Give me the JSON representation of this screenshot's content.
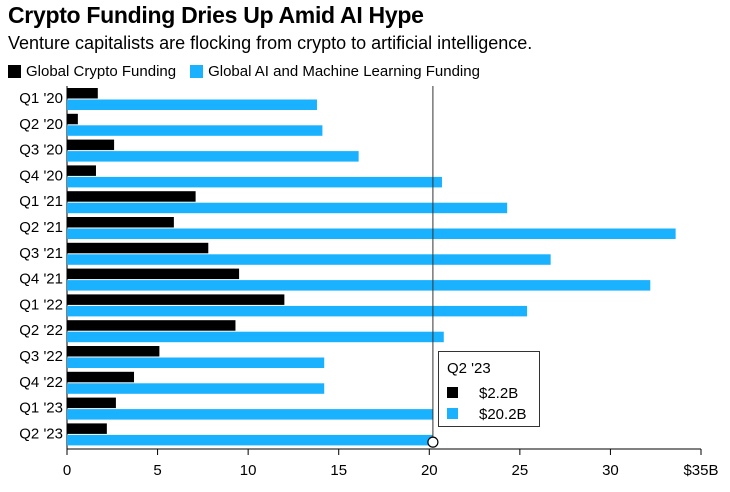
{
  "title": "Crypto Funding Dries Up Amid AI Hype",
  "subtitle": "Venture capitalists are flocking from crypto to artificial intelligence.",
  "colors": {
    "crypto": "#000000",
    "ai": "#1ab2ff",
    "marker_line": "#333333"
  },
  "legend": [
    {
      "label": "Global Crypto Funding"
    },
    {
      "label": "Global AI and Machine Learning Funding"
    }
  ],
  "tooltip": {
    "header": "Q2 '23",
    "crypto_value": "$2.2B",
    "ai_value": "$20.2B"
  },
  "chart_data": {
    "type": "bar",
    "orientation": "horizontal",
    "categories": [
      "Q1 '20",
      "Q2 '20",
      "Q3 '20",
      "Q4 '20",
      "Q1 '21",
      "Q2 '21",
      "Q3 '21",
      "Q4 '21",
      "Q1 '22",
      "Q2 '22",
      "Q3 '22",
      "Q4 '22",
      "Q1 '23",
      "Q2 '23"
    ],
    "series": [
      {
        "name": "Global Crypto Funding",
        "values": [
          1.7,
          0.6,
          2.6,
          1.6,
          7.1,
          5.9,
          7.8,
          9.5,
          12.0,
          9.3,
          5.1,
          3.7,
          2.7,
          2.2
        ]
      },
      {
        "name": "Global AI and Machine Learning Funding",
        "values": [
          13.8,
          14.1,
          16.1,
          20.7,
          24.3,
          33.6,
          26.7,
          32.2,
          25.4,
          20.8,
          14.2,
          14.2,
          20.2,
          20.2
        ]
      }
    ],
    "xlim": [
      0,
      35
    ],
    "xticks": [
      "0",
      "5",
      "10",
      "15",
      "20",
      "25",
      "30",
      "$35B"
    ],
    "xtick_values": [
      0,
      5,
      10,
      15,
      20,
      25,
      30,
      35
    ],
    "highlight_category": "Q2 '23",
    "highlight_value": 20.2,
    "legend_position": "top-left"
  }
}
